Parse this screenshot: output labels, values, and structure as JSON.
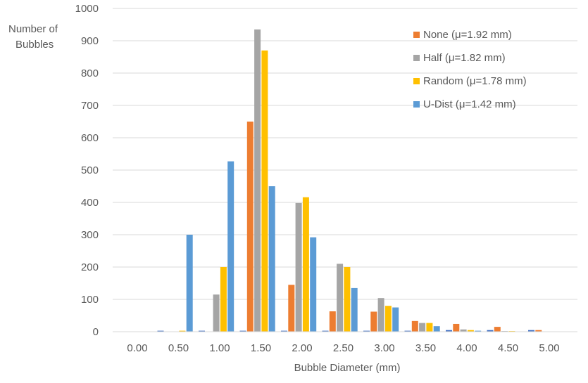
{
  "chart_data": {
    "type": "bar",
    "title": "",
    "xlabel": "Bubble Diameter (mm)",
    "ylabel": "Number of Bubbles",
    "ylim": [
      0,
      1000
    ],
    "yticks": [
      0,
      100,
      200,
      300,
      400,
      500,
      600,
      700,
      800,
      900,
      1000
    ],
    "grid": true,
    "legend_position": "top-right",
    "categories": [
      "0.00",
      "0.50",
      "1.00",
      "1.50",
      "2.00",
      "2.50",
      "3.00",
      "3.50",
      "4.00",
      "4.50",
      "5.00"
    ],
    "series": [
      {
        "name": "None (μ=1.92 mm)",
        "color": "#ED7D31",
        "values": [
          0,
          0,
          0,
          650,
          145,
          63,
          62,
          33,
          24,
          15,
          5
        ]
      },
      {
        "name": "Half (μ=1.82 mm)",
        "color": "#A5A5A5",
        "values": [
          0,
          0,
          115,
          935,
          398,
          210,
          104,
          27,
          7,
          2,
          0
        ]
      },
      {
        "name": "Random (μ=1.78 mm)",
        "color": "#FFC000",
        "values": [
          0,
          3,
          200,
          870,
          416,
          200,
          80,
          27,
          5,
          2,
          0
        ]
      },
      {
        "name": "U-Dist (μ=1.42 mm)",
        "color": "#5B9BD5",
        "values": [
          0,
          300,
          527,
          450,
          292,
          135,
          75,
          17,
          3,
          0,
          0
        ]
      }
    ],
    "extra_series": {
      "name": "",
      "color": "#4472C4",
      "values": [
        0,
        3,
        3,
        3,
        3,
        3,
        3,
        3,
        5,
        5,
        5
      ]
    }
  }
}
